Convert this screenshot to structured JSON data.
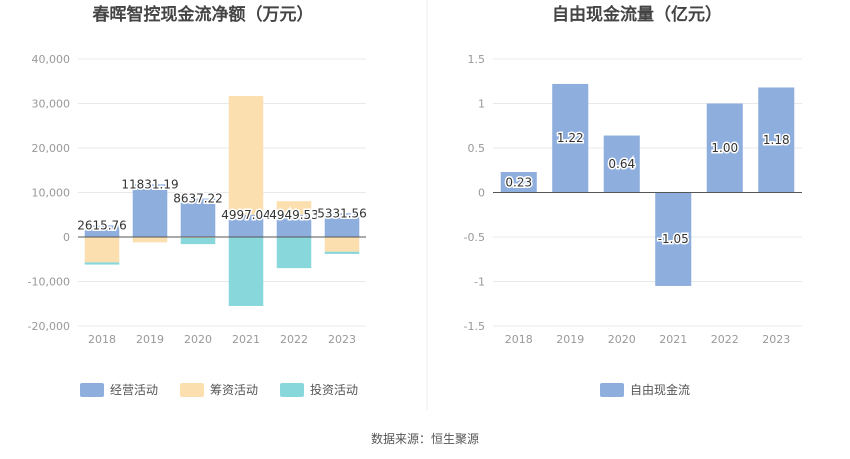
{
  "left_title": "春晖智控现金流净额（万元）",
  "right_title": "自由现金流量（亿元）",
  "source": "数据来源：恒生聚源",
  "colors": {
    "operating": "#8eaede",
    "financing": "#fbdfaf",
    "investing": "#88d7db",
    "fcf": "#8eaede",
    "grid": "#e9e9e9",
    "axis": "#555555"
  },
  "chart_data": [
    {
      "type": "bar",
      "stacked": true,
      "title": "春晖智控现金流净额（万元）",
      "categories": [
        "2018",
        "2019",
        "2020",
        "2021",
        "2022",
        "2023"
      ],
      "ylim": [
        -20000,
        40000
      ],
      "yticks": [
        40000,
        30000,
        20000,
        10000,
        0,
        -10000,
        -20000
      ],
      "ytick_labels": [
        "40,000",
        "30,000",
        "20,000",
        "10,000",
        "0",
        "-10,000",
        "-20,000"
      ],
      "grid": true,
      "legend_position": "bottom",
      "series": [
        {
          "name": "经营活动",
          "values": [
            2615.76,
            11831.19,
            8637.22,
            4997.04,
            4949.53,
            5331.56
          ]
        },
        {
          "name": "筹资活动",
          "values": [
            -5700,
            -1200,
            -200,
            26700,
            3100,
            -3300
          ]
        },
        {
          "name": "投资活动",
          "values": [
            -500,
            0,
            -1400,
            -15500,
            -7000,
            -500
          ]
        }
      ],
      "data_labels": [
        "2615.76",
        "11831.19",
        "8637.22",
        "4997.04",
        "4949.53",
        "5331.56"
      ]
    },
    {
      "type": "bar",
      "title": "自由现金流量（亿元）",
      "categories": [
        "2018",
        "2019",
        "2020",
        "2021",
        "2022",
        "2023"
      ],
      "ylim": [
        -1.5,
        1.5
      ],
      "yticks": [
        1.5,
        1,
        0.5,
        0,
        -0.5,
        -1,
        -1.5
      ],
      "ytick_labels": [
        "1.5",
        "1",
        "0.5",
        "0",
        "-0.5",
        "-1",
        "-1.5"
      ],
      "grid": true,
      "legend_position": "bottom",
      "series": [
        {
          "name": "自由现金流",
          "values": [
            0.23,
            1.22,
            0.64,
            -1.05,
            1.0,
            1.18
          ]
        }
      ],
      "data_labels": [
        "0.23",
        "1.22",
        "0.64",
        "-1.05",
        "1.00",
        "1.18"
      ]
    }
  ]
}
